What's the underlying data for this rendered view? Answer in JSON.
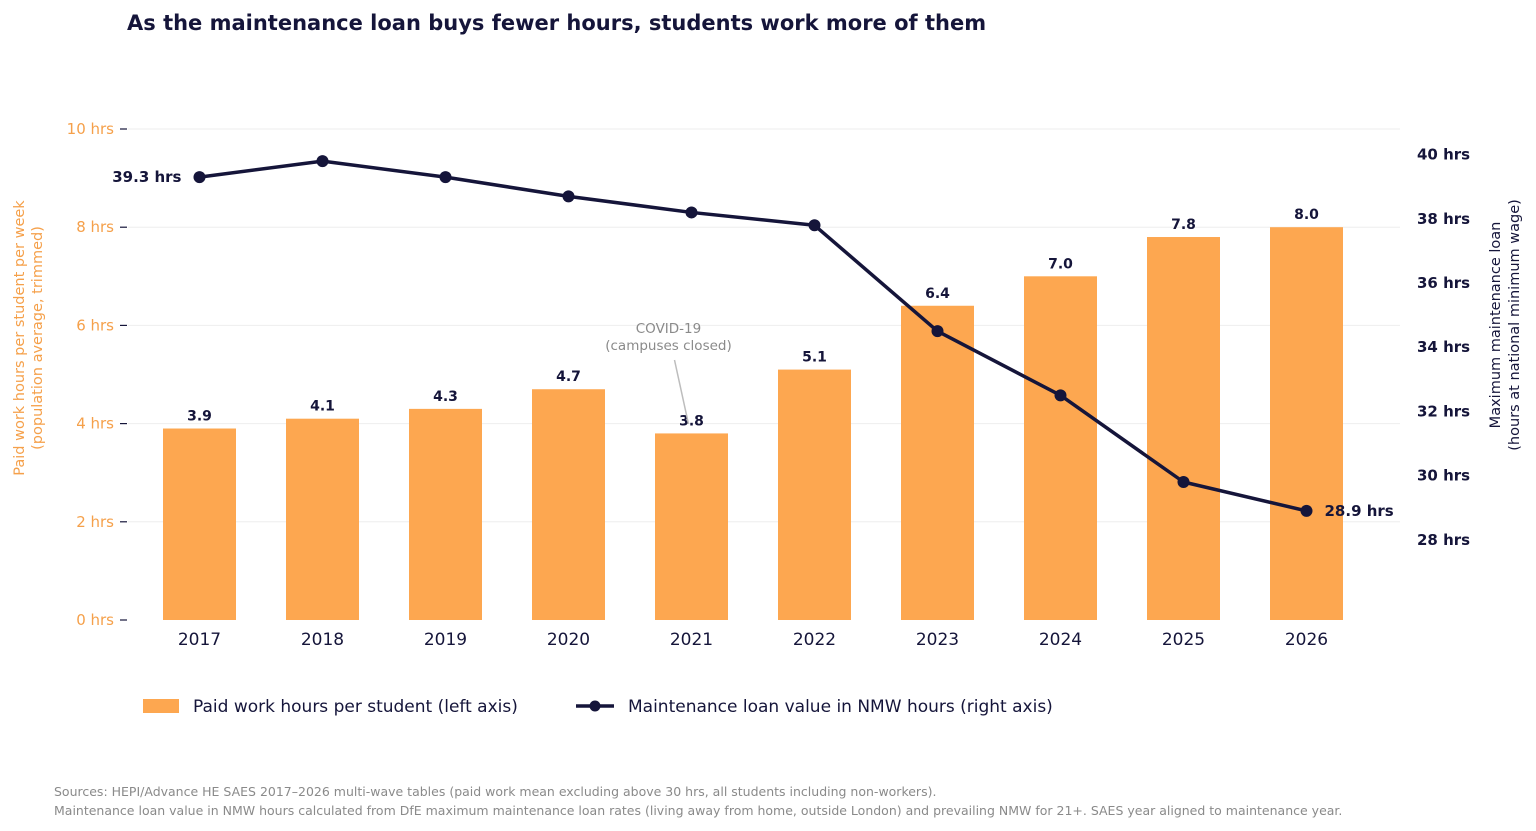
{
  "chart_data": {
    "type": "bar",
    "title": "As the maintenance loan buys fewer hours, students work more of them",
    "categories": [
      "2017",
      "2018",
      "2019",
      "2020",
      "2021",
      "2022",
      "2023",
      "2024",
      "2025",
      "2026"
    ],
    "series": [
      {
        "name": "Paid work hours per student (left axis)",
        "type": "bar",
        "axis": "left",
        "values": [
          3.9,
          4.1,
          4.3,
          4.7,
          3.8,
          5.1,
          6.4,
          7.0,
          7.8,
          8.0
        ],
        "labels": [
          "3.9",
          "4.1",
          "4.3",
          "4.7",
          "3.8",
          "5.1",
          "6.4",
          "7.0",
          "7.8",
          "8.0"
        ]
      },
      {
        "name": "Maintenance loan value in NMW hours (right axis)",
        "type": "line",
        "axis": "right",
        "values": [
          39.3,
          39.8,
          39.3,
          38.7,
          38.2,
          37.8,
          34.5,
          32.5,
          29.8,
          28.9
        ],
        "start_label": "39.3 hrs",
        "end_label": "28.9 hrs"
      }
    ],
    "left_axis": {
      "label_line1": "Paid work hours per student per week",
      "label_line2": "(population average, trimmed)",
      "ylim": [
        0,
        10
      ],
      "ticks": [
        0,
        2,
        4,
        6,
        8,
        10
      ],
      "tick_labels": [
        "0 hrs",
        "2 hrs",
        "4 hrs",
        "6 hrs",
        "8 hrs",
        "10 hrs"
      ]
    },
    "right_axis": {
      "label_line1": "Maximum maintenance loan",
      "label_line2": "(hours at national minimum wage)",
      "ylim": [
        25.5,
        40.8
      ],
      "ticks": [
        28,
        30,
        32,
        34,
        36,
        38,
        40
      ],
      "tick_labels": [
        "28 hrs",
        "30 hrs",
        "32 hrs",
        "34 hrs",
        "36 hrs",
        "38 hrs",
        "40 hrs"
      ]
    },
    "annotation": {
      "line1": "COVID-19",
      "line2": "(campuses closed)",
      "category": "2021"
    },
    "grid": true,
    "legend_position": "bottom-left",
    "colors": {
      "bar": "#fda750",
      "line": "#15153a",
      "left_axis": "#f5a04a",
      "grid": "#eeeeee"
    }
  },
  "footer": {
    "source_line1": "Sources: HEPI/Advance HE SAES 2017–2026 multi-wave tables (paid work mean excluding above 30 hrs, all students including non-workers).",
    "source_line2": "Maintenance loan value in NMW hours calculated from DfE maximum maintenance loan rates (living away from home, outside London) and prevailing NMW for 21+. SAES year aligned to maintenance year."
  }
}
